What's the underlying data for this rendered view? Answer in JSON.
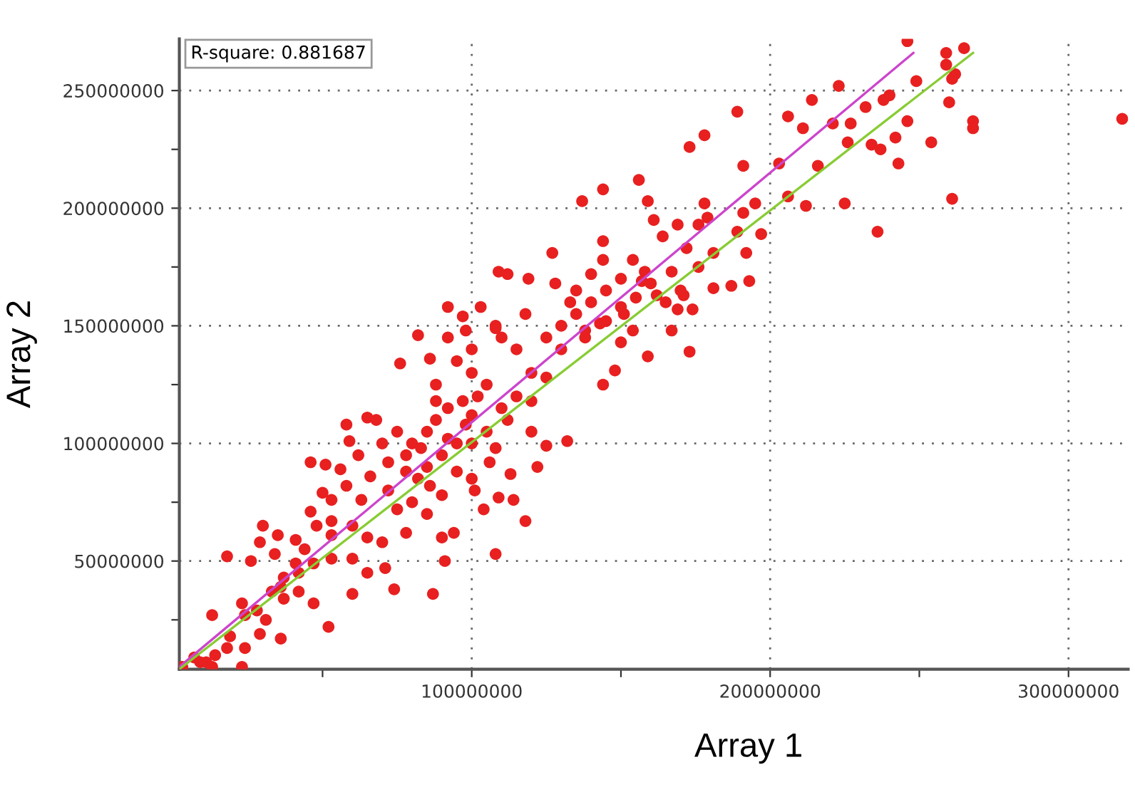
{
  "chart_data": {
    "type": "scatter",
    "xlabel": "Array 1",
    "ylabel": "Array 2",
    "annotations": [
      "R-square: 0.881687"
    ],
    "xlim": [
      2000000,
      320000000
    ],
    "ylim": [
      4000000,
      272000000
    ],
    "xticks": [
      {
        "value": 50000000,
        "label": null
      },
      100000000,
      {
        "value": 150000000,
        "label": null
      },
      200000000,
      {
        "value": 250000000,
        "label": null
      },
      300000000
    ],
    "yticks": [
      {
        "value": 25000000,
        "label": null
      },
      50000000,
      {
        "value": 75000000,
        "label": null
      },
      100000000,
      {
        "value": 125000000,
        "label": null
      },
      150000000,
      {
        "value": 175000000,
        "label": null
      },
      200000000,
      {
        "value": 225000000,
        "label": null
      },
      250000000
    ],
    "grid": true,
    "legend": false,
    "marker": "circle",
    "series": [
      {
        "color": "#e82020",
        "x": [
          246000000.0,
          265000000.0,
          259000000.0,
          259000000.0,
          262000000.0,
          261000000.0,
          249000000.0,
          223000000.0,
          214000000.0,
          240000000.0,
          238000000.0,
          232000000.0,
          260000000.0,
          189000000.0,
          206000000.0,
          211000000.0,
          227000000.0,
          221000000.0,
          246000000.0,
          268000000.0,
          268000000.0,
          318000000.0,
          178000000.0,
          173000000.0,
          226000000.0,
          242000000.0,
          254000000.0,
          234000000.0,
          237000000.0,
          243000000.0,
          191000000.0,
          203000000.0,
          216000000.0,
          156000000.0,
          144000000.0,
          137000000.0,
          159000000.0,
          178000000.0,
          195000000.0,
          206000000.0,
          212000000.0,
          225000000.0,
          261000000.0,
          236000000.0,
          161000000.0,
          169000000.0,
          164000000.0,
          176000000.0,
          179000000.0,
          191000000.0,
          197000000.0,
          144000000.0,
          144000000.0,
          154000000.0,
          158000000.0,
          181000000.0,
          192000000.0,
          189000000.0,
          172000000.0,
          167000000.0,
          181000000.0,
          187000000.0,
          193000000.0,
          176000000.0,
          171000000.0,
          174000000.0,
          169000000.0,
          167000000.0,
          159000000.0,
          173000000.0,
          148000000.0,
          144000000.0,
          154000000.0,
          151000000.0,
          162000000.0,
          157000000.0,
          133000000.0,
          143000000.0,
          138000000.0,
          150000000.0,
          65000000.0,
          59000000.0,
          46000000.0,
          51000000.0,
          56000000.0,
          50000000.0,
          53000000.0,
          63000000.0,
          58000000.0,
          46000000.0,
          48000000.0,
          53000000.0,
          60000000.0,
          41000000.0,
          44000000.0,
          30000000.0,
          35000000.0,
          29000000.0,
          18000000.0,
          26000000.0,
          34000000.0,
          41000000.0,
          47000000.0,
          53000000.0,
          60000000.0,
          65000000.0,
          71000000.0,
          74000000.0,
          87000000.0,
          91000000.0,
          94000000.0,
          108000000.0,
          118000000.0,
          114000000.0,
          109000000.0,
          104000000.0,
          101000000.0,
          100000000.0,
          122000000.0,
          125000000.0,
          120000000.0,
          132000000.0,
          53000000.0,
          36000000.0,
          33000000.0,
          37000000.0,
          42000000.0,
          47000000.0,
          52000000.0,
          60000000.0,
          42000000.0,
          13000000.0,
          23000000.0,
          24000000.0,
          28000000.0,
          31000000.0,
          29000000.0,
          36000000.0,
          19000000.0,
          18000000.0,
          24000000.0,
          14000000.0,
          11000000.0,
          7000000.0,
          13000000.0,
          23000000.0,
          3000000.0,
          9000000.0,
          37000000.0,
          80000000.0,
          85000000.0,
          88000000.0,
          90000000.0,
          92000000.0,
          95000000.0,
          98000000.0,
          100000000.0,
          102000000.0,
          85000000.0,
          78000000.0,
          82000000.0,
          95000000.0,
          105000000.0,
          110000000.0,
          75000000.0,
          88000000.0,
          100000000.0,
          70000000.0,
          92000000.0,
          97000000.0,
          83000000.0,
          105000000.0,
          115000000.0,
          120000000.0,
          112000000.0,
          108000000.0,
          86000000.0,
          90000000.0,
          78000000.0,
          72000000.0,
          68000000.0,
          95000000.0,
          100000000.0,
          110000000.0,
          115000000.0,
          125000000.0,
          130000000.0,
          135000000.0,
          140000000.0,
          120000000.0,
          125000000.0,
          130000000.0,
          138000000.0,
          145000000.0,
          150000000.0,
          155000000.0,
          145000000.0,
          150000000.0,
          160000000.0,
          165000000.0,
          170000000.0,
          140000000.0,
          135000000.0,
          128000000.0,
          118000000.0,
          108000000.0,
          103000000.0,
          112000000.0,
          98000000.0,
          92000000.0,
          100000000.0,
          88000000.0,
          106000000.0,
          113000000.0,
          62000000.0,
          58000000.0,
          66000000.0,
          72000000.0,
          75000000.0,
          80000000.0,
          85000000.0,
          90000000.0,
          65000000.0,
          70000000.0,
          78000000.0,
          76000000.0,
          82000000.0,
          92000000.0,
          109000000.0,
          127000000.0,
          119000000.0,
          108000000.0,
          86000000.0,
          97000000.0
        ],
        "values": [
          271000000.0,
          268000000.0,
          266000000.0,
          261000000.0,
          257000000.0,
          255000000.0,
          254000000.0,
          252000000.0,
          246000000.0,
          248000000.0,
          246000000.0,
          243000000.0,
          245000000.0,
          241000000.0,
          239000000.0,
          234000000.0,
          236000000.0,
          236000000.0,
          237000000.0,
          237000000.0,
          234000000.0,
          238000000.0,
          231000000.0,
          226000000.0,
          228000000.0,
          230000000.0,
          228000000.0,
          227000000.0,
          225000000.0,
          219000000.0,
          218000000.0,
          219000000.0,
          218000000.0,
          212000000.0,
          208000000.0,
          203000000.0,
          203000000.0,
          202000000.0,
          202000000.0,
          205000000.0,
          201000000.0,
          202000000.0,
          204000000.0,
          190000000.0,
          195000000.0,
          193000000.0,
          188000000.0,
          193000000.0,
          196000000.0,
          198000000.0,
          189000000.0,
          186000000.0,
          178000000.0,
          178000000.0,
          173000000.0,
          181000000.0,
          181000000.0,
          190000000.0,
          183000000.0,
          173000000.0,
          166000000.0,
          167000000.0,
          169000000.0,
          175000000.0,
          163000000.0,
          157000000.0,
          157000000.0,
          148000000.0,
          137000000.0,
          139000000.0,
          131000000.0,
          125000000.0,
          148000000.0,
          155000000.0,
          163000000.0,
          169000000.0,
          160000000.0,
          151000000.0,
          145000000.0,
          143000000.0,
          111000000.0,
          101000000.0,
          92000000.0,
          91000000.0,
          89000000.0,
          79000000.0,
          76000000.0,
          76000000.0,
          82000000.0,
          71000000.0,
          65000000.0,
          61000000.0,
          65000000.0,
          59000000.0,
          55000000.0,
          65000000.0,
          61000000.0,
          58000000.0,
          52000000.0,
          50000000.0,
          53000000.0,
          49000000.0,
          49000000.0,
          51000000.0,
          51000000.0,
          45000000.0,
          47000000.0,
          38000000.0,
          36000000.0,
          50000000.0,
          62000000.0,
          53000000.0,
          67000000.0,
          76000000.0,
          77000000.0,
          72000000.0,
          80000000.0,
          85000000.0,
          90000000.0,
          99000000.0,
          105000000.0,
          101000000.0,
          67000000.0,
          39000000.0,
          37000000.0,
          34000000.0,
          37000000.0,
          32000000.0,
          22000000.0,
          36000000.0,
          45000000.0,
          27000000.0,
          32000000.0,
          27000000.0,
          29000000.0,
          25000000.0,
          19000000.0,
          17000000.0,
          18000000.0,
          13000000.0,
          13000000.0,
          10000000.0,
          7000000.0,
          9000000.0,
          5000000.0,
          5000000.0,
          5000000.0,
          7000000.0,
          43000000.0,
          100000000.0,
          105000000.0,
          110000000.0,
          95000000.0,
          115000000.0,
          100000000.0,
          108000000.0,
          112000000.0,
          120000000.0,
          90000000.0,
          95000000.0,
          85000000.0,
          88000000.0,
          105000000.0,
          115000000.0,
          105000000.0,
          125000000.0,
          130000000.0,
          100000000.0,
          102000000.0,
          118000000.0,
          98000000.0,
          125000000.0,
          120000000.0,
          130000000.0,
          110000000.0,
          98000000.0,
          82000000.0,
          78000000.0,
          88000000.0,
          92000000.0,
          110000000.0,
          135000000.0,
          140000000.0,
          145000000.0,
          140000000.0,
          145000000.0,
          150000000.0,
          155000000.0,
          160000000.0,
          118000000.0,
          128000000.0,
          140000000.0,
          148000000.0,
          152000000.0,
          158000000.0,
          162000000.0,
          165000000.0,
          170000000.0,
          168000000.0,
          160000000.0,
          165000000.0,
          172000000.0,
          165000000.0,
          168000000.0,
          155000000.0,
          150000000.0,
          158000000.0,
          172000000.0,
          148000000.0,
          145000000.0,
          100000000.0,
          118000000.0,
          92000000.0,
          87000000.0,
          95000000.0,
          108000000.0,
          86000000.0,
          80000000.0,
          72000000.0,
          75000000.0,
          70000000.0,
          60000000.0,
          60000000.0,
          58000000.0,
          62000000.0,
          134000000.0,
          146000000.0,
          158000000.0,
          173000000.0,
          181000000.0,
          170000000.0,
          149000000.0,
          136000000.0,
          154000000.0
        ]
      },
      {
        "type": "line",
        "color": "#cc44cc",
        "marker": "none",
        "x": [
          2000000,
          248000000
        ],
        "values": [
          5000000,
          266000000
        ]
      },
      {
        "type": "line",
        "color": "#88cc33",
        "marker": "none",
        "x": [
          2000000,
          268000000
        ],
        "values": [
          4000000,
          266000000
        ]
      }
    ]
  }
}
